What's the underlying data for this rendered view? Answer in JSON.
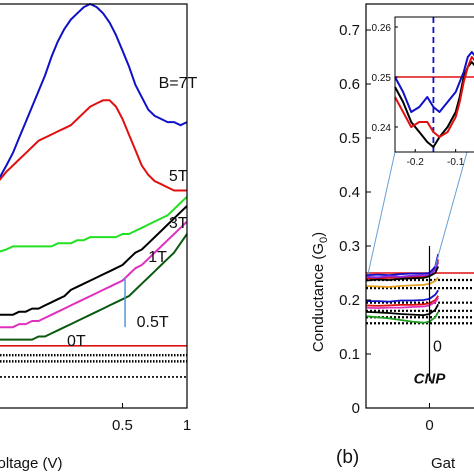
{
  "chart_data": [
    {
      "type": "line",
      "panel": "left",
      "xlabel": "oltage (V)",
      "ylabel": "",
      "xlim": [
        -0.48,
        1.0
      ],
      "ylim": [
        -0.2,
        1.1
      ],
      "x_ticks": [
        {
          "value": 0.5,
          "label": "0.5"
        },
        {
          "value": 1.0,
          "label": "1"
        }
      ],
      "series": [
        {
          "name": "B=7T",
          "label_x": 0.78,
          "label_y": 0.83,
          "color": "#1010c8",
          "x": [
            -0.48,
            -0.4,
            -0.35,
            -0.3,
            -0.25,
            -0.2,
            -0.15,
            -0.1,
            -0.05,
            0.0,
            0.05,
            0.1,
            0.15,
            0.2,
            0.25,
            0.3,
            0.35,
            0.4,
            0.45,
            0.5,
            0.55,
            0.6,
            0.65,
            0.7,
            0.75,
            0.8,
            0.85,
            0.9,
            0.95,
            1.0
          ],
          "y": [
            0.52,
            0.58,
            0.62,
            0.67,
            0.72,
            0.77,
            0.82,
            0.87,
            0.93,
            0.98,
            1.02,
            1.05,
            1.07,
            1.09,
            1.1,
            1.09,
            1.07,
            1.04,
            1.0,
            0.95,
            0.9,
            0.84,
            0.8,
            0.76,
            0.74,
            0.73,
            0.72,
            0.72,
            0.71,
            0.72
          ]
        },
        {
          "name": "5T",
          "label_x": 0.86,
          "label_y": 0.53,
          "color": "#e01010",
          "x": [
            -0.48,
            -0.4,
            -0.35,
            -0.3,
            -0.25,
            -0.2,
            -0.15,
            -0.1,
            -0.05,
            0.0,
            0.05,
            0.1,
            0.15,
            0.2,
            0.25,
            0.3,
            0.35,
            0.4,
            0.45,
            0.5,
            0.55,
            0.6,
            0.65,
            0.7,
            0.75,
            0.8,
            0.85,
            0.9,
            0.95,
            1.0
          ],
          "y": [
            0.52,
            0.56,
            0.58,
            0.6,
            0.62,
            0.64,
            0.66,
            0.67,
            0.68,
            0.69,
            0.7,
            0.71,
            0.73,
            0.75,
            0.77,
            0.78,
            0.79,
            0.79,
            0.77,
            0.73,
            0.68,
            0.63,
            0.58,
            0.55,
            0.53,
            0.52,
            0.51,
            0.5,
            0.5,
            0.5
          ]
        },
        {
          "name": "3T",
          "label_x": 0.86,
          "label_y": 0.38,
          "color": "#22e022",
          "x": [
            -0.48,
            -0.4,
            -0.35,
            -0.3,
            -0.25,
            -0.2,
            -0.15,
            -0.1,
            -0.05,
            0.0,
            0.05,
            0.1,
            0.15,
            0.2,
            0.25,
            0.3,
            0.35,
            0.4,
            0.45,
            0.5,
            0.55,
            0.6,
            0.65,
            0.7,
            0.75,
            0.8,
            0.85,
            0.9,
            0.95,
            1.0
          ],
          "y": [
            0.3,
            0.31,
            0.32,
            0.32,
            0.32,
            0.32,
            0.32,
            0.32,
            0.32,
            0.33,
            0.33,
            0.33,
            0.34,
            0.34,
            0.35,
            0.35,
            0.35,
            0.35,
            0.35,
            0.36,
            0.36,
            0.37,
            0.38,
            0.39,
            0.4,
            0.41,
            0.42,
            0.44,
            0.46,
            0.48
          ]
        },
        {
          "name": "1T",
          "label_x": 0.7,
          "label_y": 0.27,
          "color": "#000000",
          "x": [
            -0.48,
            -0.4,
            -0.35,
            -0.3,
            -0.25,
            -0.2,
            -0.15,
            -0.1,
            -0.05,
            0.0,
            0.05,
            0.1,
            0.15,
            0.2,
            0.25,
            0.3,
            0.35,
            0.4,
            0.45,
            0.5,
            0.55,
            0.6,
            0.65,
            0.7,
            0.75,
            0.8,
            0.85,
            0.9,
            0.95,
            1.0
          ],
          "y": [
            0.1,
            0.1,
            0.1,
            0.11,
            0.11,
            0.12,
            0.12,
            0.13,
            0.14,
            0.15,
            0.16,
            0.18,
            0.19,
            0.2,
            0.21,
            0.22,
            0.23,
            0.24,
            0.25,
            0.26,
            0.28,
            0.3,
            0.31,
            0.33,
            0.35,
            0.37,
            0.39,
            0.41,
            0.43,
            0.45
          ]
        },
        {
          "name": "0.5T",
          "label_x": 0.61,
          "label_y": 0.06,
          "color": "#e030c0",
          "x": [
            -0.48,
            -0.4,
            -0.35,
            -0.3,
            -0.25,
            -0.2,
            -0.15,
            -0.1,
            -0.05,
            0.0,
            0.05,
            0.1,
            0.15,
            0.2,
            0.25,
            0.3,
            0.35,
            0.4,
            0.45,
            0.5,
            0.55,
            0.6,
            0.65,
            0.7,
            0.75,
            0.8,
            0.85,
            0.9,
            0.95,
            1.0
          ],
          "y": [
            0.06,
            0.06,
            0.06,
            0.07,
            0.07,
            0.08,
            0.08,
            0.09,
            0.1,
            0.11,
            0.12,
            0.13,
            0.14,
            0.15,
            0.16,
            0.17,
            0.18,
            0.19,
            0.2,
            0.21,
            0.23,
            0.25,
            0.26,
            0.28,
            0.3,
            0.32,
            0.34,
            0.36,
            0.38,
            0.4
          ]
        },
        {
          "name": "0T",
          "label_x": 0.07,
          "label_y": 0.0,
          "color": "#0b5a10",
          "x": [
            -0.48,
            -0.4,
            -0.35,
            -0.3,
            -0.25,
            -0.2,
            -0.15,
            -0.1,
            -0.05,
            0.0,
            0.05,
            0.1,
            0.15,
            0.2,
            0.25,
            0.3,
            0.35,
            0.4,
            0.45,
            0.5,
            0.55,
            0.6,
            0.65,
            0.7,
            0.75,
            0.8,
            0.85,
            0.9,
            0.95,
            1.0
          ],
          "y": [
            0.02,
            0.02,
            0.02,
            0.02,
            0.02,
            0.02,
            0.03,
            0.03,
            0.04,
            0.05,
            0.06,
            0.07,
            0.08,
            0.09,
            0.1,
            0.11,
            0.12,
            0.13,
            0.14,
            0.15,
            0.16,
            0.18,
            0.2,
            0.22,
            0.24,
            0.26,
            0.28,
            0.3,
            0.33,
            0.36
          ]
        }
      ],
      "reference_lines": [
        {
          "y": 0.0,
          "style": "solid",
          "color": "#e01010"
        },
        {
          "y": -0.03,
          "style": "dense-dotted",
          "color": "#000000"
        },
        {
          "y": -0.05,
          "style": "dense-dotted",
          "color": "#000000"
        },
        {
          "y": -0.1,
          "style": "dotted",
          "color": "#000000"
        }
      ],
      "marker": {
        "x": 0.52,
        "y_from": 0.06,
        "y_to": 0.22,
        "color": "#4a90d9"
      }
    },
    {
      "type": "line",
      "panel": "right",
      "panel_label": "(b)",
      "ylabel": "Conductance (G",
      "ylabel_sub": "0",
      "ylabel_close": ")",
      "xlabel": "Gat",
      "xlim": [
        -0.22,
        0.22
      ],
      "ylim": [
        0,
        0.75
      ],
      "y_ticks": [
        0,
        0.1,
        0.2,
        0.3,
        0.4,
        0.5,
        0.6,
        0.7
      ],
      "x_ticks": [
        {
          "value": 0,
          "label": "0"
        }
      ],
      "annotation": {
        "text": "CNP",
        "x": 0,
        "y": 0.045
      },
      "partial_label": {
        "text": "0",
        "x": 0.012,
        "y": 0.105
      },
      "vertical_line": {
        "x": 0,
        "y_from": 0.05,
        "y_to": 0.3
      },
      "series": [
        {
          "color": "#e01010",
          "x": [
            -0.22,
            -0.18,
            -0.14,
            -0.1,
            -0.06,
            -0.02,
            0.0,
            0.02,
            0.03
          ],
          "y": [
            0.24,
            0.24,
            0.241,
            0.242,
            0.243,
            0.244,
            0.248,
            0.258,
            0.275
          ]
        },
        {
          "color": "#1010c8",
          "x": [
            -0.22,
            -0.18,
            -0.14,
            -0.1,
            -0.06,
            -0.02,
            0.0,
            0.02,
            0.03
          ],
          "y": [
            0.246,
            0.247,
            0.246,
            0.248,
            0.249,
            0.249,
            0.25,
            0.262,
            0.285
          ]
        },
        {
          "color": "#8a2be2",
          "x": [
            -0.22,
            -0.18,
            -0.14,
            -0.1,
            -0.06,
            -0.02,
            0.0,
            0.02,
            0.03
          ],
          "y": [
            0.243,
            0.242,
            0.244,
            0.243,
            0.245,
            0.246,
            0.247,
            0.256,
            0.27
          ]
        },
        {
          "color": "#000000",
          "x": [
            -0.22,
            -0.18,
            -0.14,
            -0.1,
            -0.06,
            -0.02,
            0.0,
            0.02,
            0.03
          ],
          "y": [
            0.236,
            0.238,
            0.237,
            0.239,
            0.24,
            0.241,
            0.244,
            0.25,
            0.262
          ]
        },
        {
          "color": "#e8a020",
          "x": [
            -0.22,
            -0.18,
            -0.14,
            -0.1,
            -0.06,
            -0.02,
            0.0,
            0.02,
            0.03
          ],
          "y": [
            0.226,
            0.225,
            0.224,
            0.226,
            0.227,
            0.228,
            0.23,
            0.235,
            0.242
          ]
        },
        {
          "color": "#1010c8",
          "x": [
            -0.22,
            -0.18,
            -0.14,
            -0.1,
            -0.06,
            -0.02,
            0.0,
            0.02,
            0.03
          ],
          "y": [
            0.198,
            0.198,
            0.197,
            0.199,
            0.199,
            0.2,
            0.202,
            0.21,
            0.218
          ]
        },
        {
          "color": "#e01010",
          "x": [
            -0.22,
            -0.18,
            -0.14,
            -0.1,
            -0.06,
            -0.02,
            0.0,
            0.02,
            0.03
          ],
          "y": [
            0.19,
            0.189,
            0.19,
            0.191,
            0.191,
            0.192,
            0.194,
            0.2,
            0.208
          ]
        },
        {
          "color": "#000000",
          "x": [
            -0.22,
            -0.18,
            -0.14,
            -0.1,
            -0.06,
            -0.02,
            0.0,
            0.02,
            0.03
          ],
          "y": [
            0.178,
            0.177,
            0.176,
            0.174,
            0.173,
            0.172,
            0.174,
            0.182,
            0.192
          ]
        },
        {
          "color": "#22a022",
          "x": [
            -0.22,
            -0.18,
            -0.14,
            -0.1,
            -0.06,
            -0.02,
            0.0,
            0.02,
            0.03
          ],
          "y": [
            0.17,
            0.168,
            0.166,
            0.163,
            0.16,
            0.158,
            0.16,
            0.168,
            0.178
          ]
        },
        {
          "color": "#e030c0",
          "x": [
            -0.22,
            -0.18,
            -0.14,
            -0.1,
            -0.06,
            -0.02,
            0.0,
            0.02,
            0.03
          ],
          "y": [
            0.186,
            0.185,
            0.186,
            0.186,
            0.187,
            0.188,
            0.19,
            0.196,
            0.204
          ]
        }
      ],
      "reference_lines": [
        {
          "y": 0.25,
          "style": "solid",
          "color": "#e01010"
        },
        {
          "y": 0.237,
          "style": "dotted",
          "color": "#000000"
        },
        {
          "y": 0.222,
          "style": "dotted",
          "color": "#000000"
        },
        {
          "y": 0.195,
          "style": "dotted",
          "color": "#000000"
        },
        {
          "y": 0.18,
          "style": "dotted",
          "color": "#000000"
        },
        {
          "y": 0.168,
          "style": "dotted",
          "color": "#000000"
        },
        {
          "y": 0.157,
          "style": "dotted",
          "color": "#000000"
        }
      ],
      "inset": {
        "xlim": [
          -0.25,
          -0.02
        ],
        "ylim": [
          0.235,
          0.262
        ],
        "y_ticks": [
          0.24,
          0.25,
          0.26
        ],
        "x_ticks": [
          {
            "value": -0.2,
            "label": "-0.2"
          },
          {
            "value": -0.1,
            "label": "-0.1"
          }
        ],
        "dashed_vline": {
          "x": -0.155,
          "color": "#1010c8"
        },
        "hline": {
          "y": 0.25,
          "color": "#e01010"
        },
        "series": [
          {
            "color": "#1010c8",
            "x": [
              -0.25,
              -0.23,
              -0.21,
              -0.19,
              -0.17,
              -0.155,
              -0.14,
              -0.12,
              -0.1,
              -0.09,
              -0.08,
              -0.07,
              -0.06,
              -0.05,
              -0.04,
              -0.03
            ],
            "y": [
              0.25,
              0.247,
              0.243,
              0.244,
              0.246,
              0.244,
              0.243,
              0.245,
              0.247,
              0.249,
              0.251,
              0.254,
              0.255,
              0.254,
              0.253,
              0.254
            ]
          },
          {
            "color": "#000000",
            "x": [
              -0.25,
              -0.23,
              -0.21,
              -0.19,
              -0.17,
              -0.155,
              -0.14,
              -0.12,
              -0.1,
              -0.09,
              -0.08,
              -0.07,
              -0.06,
              -0.05,
              -0.04,
              -0.03
            ],
            "y": [
              0.248,
              0.245,
              0.241,
              0.239,
              0.237,
              0.236,
              0.238,
              0.24,
              0.243,
              0.246,
              0.25,
              0.252,
              0.253,
              0.252,
              0.252,
              0.251
            ]
          },
          {
            "color": "#e01010",
            "x": [
              -0.25,
              -0.23,
              -0.21,
              -0.19,
              -0.17,
              -0.155,
              -0.14,
              -0.12,
              -0.1,
              -0.09,
              -0.08,
              -0.07,
              -0.06,
              -0.05,
              -0.04,
              -0.03
            ],
            "y": [
              0.246,
              0.243,
              0.24,
              0.241,
              0.241,
              0.239,
              0.238,
              0.239,
              0.242,
              0.245,
              0.249,
              0.252,
              0.254,
              0.253,
              0.252,
              0.253
            ]
          }
        ]
      }
    }
  ]
}
